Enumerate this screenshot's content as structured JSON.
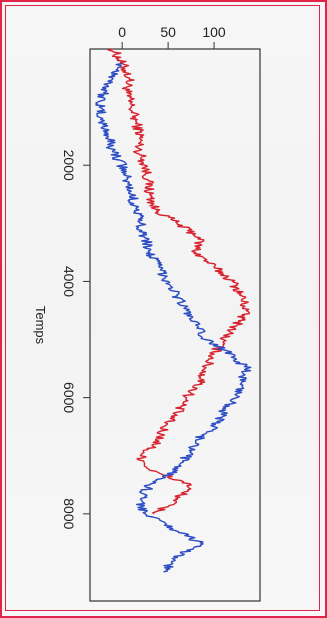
{
  "chart_data": {
    "type": "line",
    "orientation": "rotated-90-clockwise",
    "xlabel": "Temps",
    "ylabel": "",
    "xlim": [
      0,
      9500
    ],
    "ylim": [
      -35,
      150
    ],
    "x_ticks": [
      2000,
      4000,
      6000,
      8000
    ],
    "x_tick_labels": [
      "2000",
      "4000",
      "6000",
      "8000"
    ],
    "y_ticks": [
      0,
      50,
      100
    ],
    "y_tick_labels": [
      "0",
      "50",
      "100"
    ],
    "grid": false,
    "legend": "none",
    "series": [
      {
        "color": "#d8232f",
        "x": [
          0,
          250,
          500,
          750,
          1000,
          1250,
          1500,
          1750,
          2000,
          2250,
          2500,
          2750,
          3000,
          3250,
          3500,
          3750,
          4000,
          4250,
          4500,
          4750,
          5000,
          5250,
          5500,
          5750,
          6000,
          6250,
          6500,
          6750,
          7000,
          7250,
          7500,
          7750,
          8000
        ],
        "y": [
          -10,
          0,
          8,
          5,
          10,
          15,
          20,
          18,
          25,
          28,
          30,
          35,
          60,
          85,
          80,
          100,
          120,
          130,
          135,
          125,
          110,
          100,
          90,
          85,
          70,
          60,
          45,
          40,
          20,
          30,
          75,
          60,
          35
        ]
      },
      {
        "color": "#2b4cc4",
        "x": [
          250,
          500,
          750,
          1000,
          1250,
          1500,
          1750,
          2000,
          2250,
          2500,
          2750,
          3000,
          3250,
          3500,
          3750,
          4000,
          4250,
          4500,
          4750,
          5000,
          5250,
          5500,
          5750,
          6000,
          6250,
          6500,
          6750,
          7000,
          7250,
          7500,
          7750,
          8000,
          8250,
          8500,
          8750,
          9000
        ],
        "y": [
          0,
          -10,
          -20,
          -25,
          -22,
          -15,
          -10,
          0,
          5,
          10,
          15,
          20,
          25,
          30,
          40,
          50,
          60,
          70,
          80,
          90,
          120,
          135,
          130,
          125,
          110,
          100,
          80,
          70,
          60,
          30,
          20,
          25,
          55,
          85,
          60,
          45
        ]
      }
    ]
  }
}
